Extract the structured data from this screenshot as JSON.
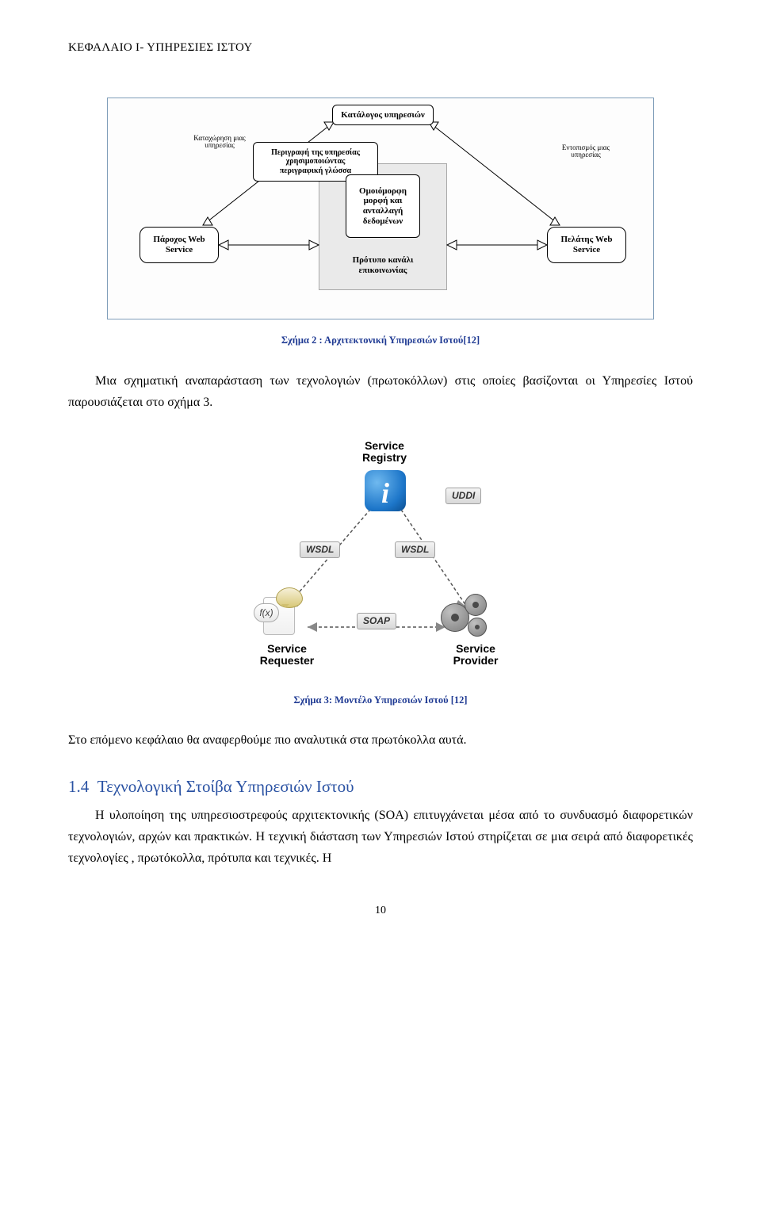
{
  "header": {
    "text": "ΚΕΦΑΛΑΙΟ Ι- ΥΠΗΡΕΣΙΕΣ ΙΣΤΟΥ"
  },
  "diagram1": {
    "boxes": {
      "catalog": "Κατάλογoς υπηρεσιών",
      "provider": "Πάροχoς Web\nService",
      "client": "Πελάτης Web\nService",
      "description": "Περιγραφή της υπηρεσίας\nχρησιμοποιώντας\nπεριγραφική γλώσσα",
      "uniform": "Oμοιόμορφη\nμορφή και\nανταλλαγή\nδεδομένων",
      "channel": "Πρότυπο κανάλι επικοινωνίας"
    },
    "small_labels": {
      "register": "Καταχώρηση μιας\nυπηρεσίας",
      "discover": "Eντοπισμός μιας\nυπηρεσίας"
    }
  },
  "captions": {
    "fig2": "Σχήμα 2 : Αρχιτεκτονική Υπηρεσιών Ιστού[12]",
    "fig3": "Σχήμα 3: Μοντέλο Υπηρεσιών Ιστού [12]"
  },
  "paragraphs": {
    "p1": "Μια σχηματική αναπαράσταση των τεχνολογιών (πρωτοκόλλων) στις οποίες βασίζονται οι Υπηρεσίες Ιστού παρουσιάζεται στο σχήμα 3.",
    "p2": "Στο επόμενο κεφάλαιο θα αναφερθούμε πιο αναλυτικά στα  πρωτόκολλα αυτά.",
    "p3": "Η υλοποίηση της υπηρεσιοστρεφούς αρχιτεκτονικής (SOA) επιτυγχάνεται μέσα από το συνδυασμό διαφορετικών τεχνολογιών, αρχών και πρακτικών. Η τεχνική διάσταση των Υπηρεσιών Ιστού στηρίζεται σε μια σειρά από διαφορετικές τεχνολογίες , πρωτόκολλα, πρότυπα και τεχνικές. Η"
  },
  "diagram2": {
    "labels": {
      "registry": "Service\nRegistry",
      "requester": "Service\nRequester",
      "provider": "Service\nProvider"
    },
    "chips": {
      "wsdl": "WSDL",
      "soap": "SOAP",
      "uddi": "UDDI"
    },
    "fx": "f(x)"
  },
  "subsection": {
    "number": "1.4",
    "title": "Τεχνολογική Στοίβα Υπηρεσιών Ιστού"
  },
  "page_number": "10"
}
